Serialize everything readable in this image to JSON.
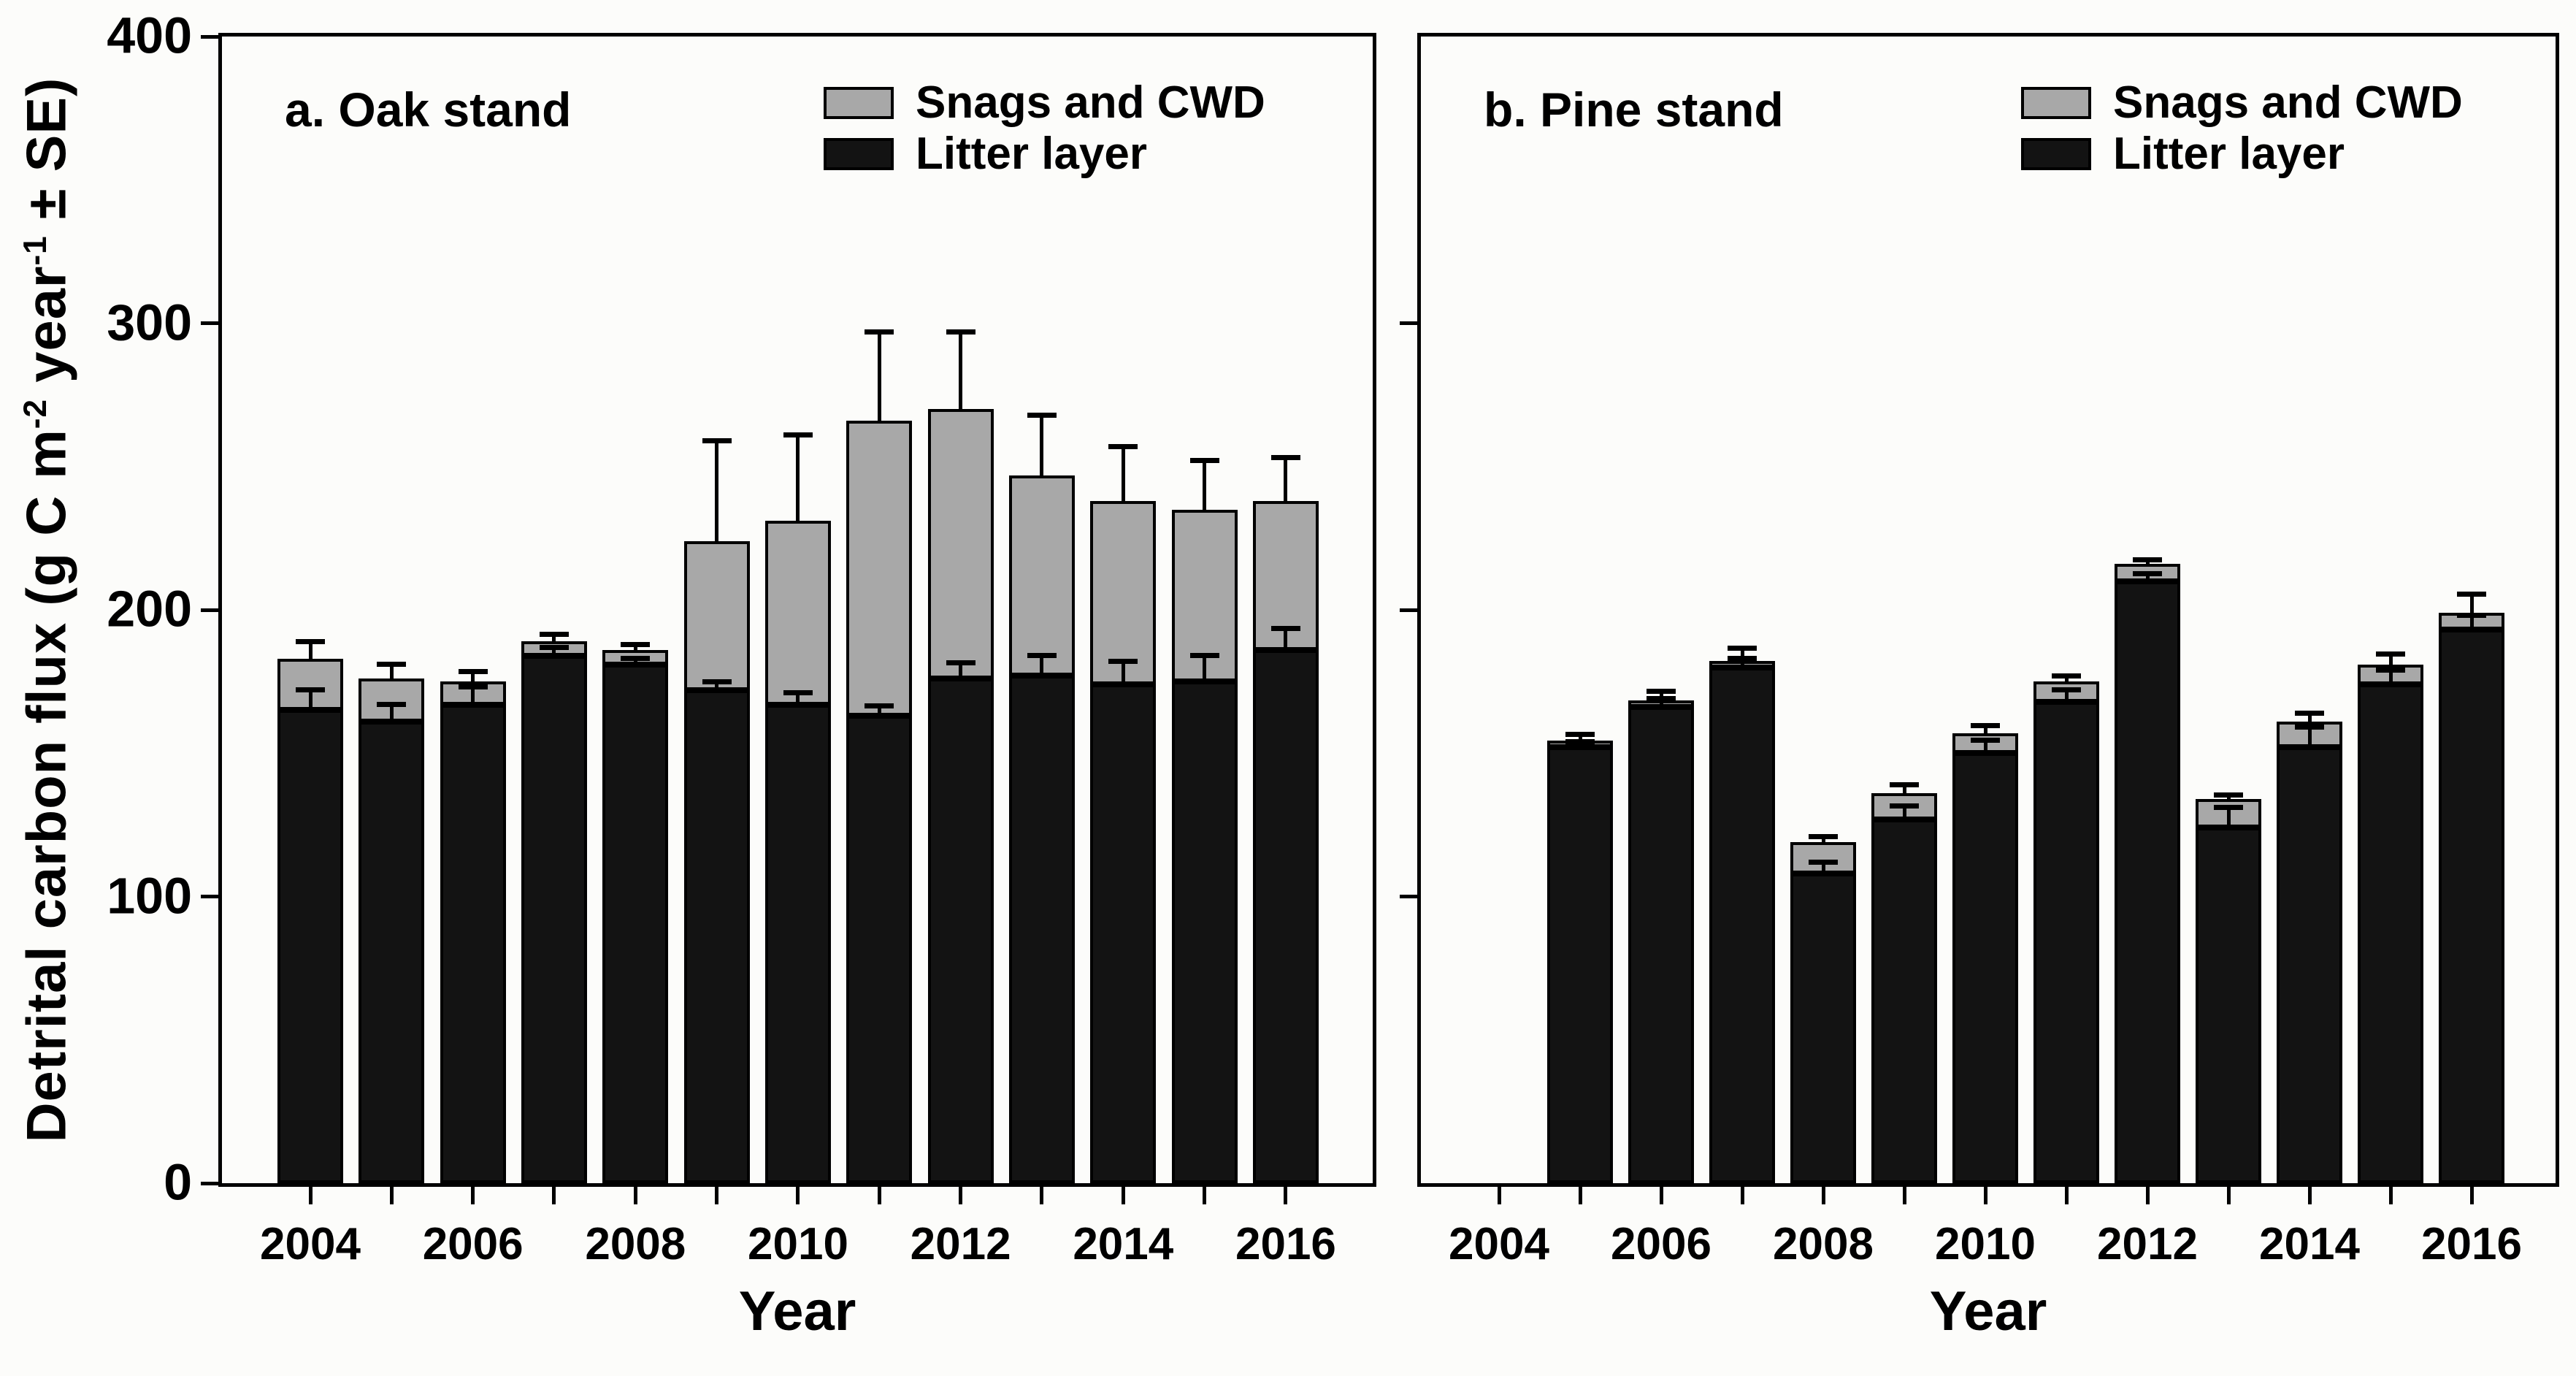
{
  "figure": {
    "background": "#fcfcfa",
    "frame_color": "#000000",
    "bar_black": "#131313",
    "bar_gray": "#a8a8a8",
    "error_color": "#000000"
  },
  "ylabel": {
    "text_flat": "Detrital carbon flux (g C m-2 year-1 ± SE)",
    "p1": "Detrital carbon flux (g C m",
    "s1": "-2",
    "p2": " year",
    "s2": "-1",
    "p3": " ± SE)"
  },
  "chart_data": [
    {
      "type": "bar",
      "stacked": true,
      "panel_id": "a",
      "title": "a. Oak stand",
      "xlabel": "Year",
      "ylim": [
        0,
        400
      ],
      "yticks": [
        0,
        100,
        200,
        300,
        400
      ],
      "grid": false,
      "legend_position": "top-right-inside",
      "categories": [
        2004,
        2005,
        2006,
        2007,
        2008,
        2009,
        2010,
        2011,
        2012,
        2013,
        2014,
        2015,
        2016
      ],
      "series": [
        {
          "name": "Litter layer",
          "color": "#131313",
          "values": [
            165,
            161,
            167,
            184,
            181,
            172,
            167,
            163,
            176,
            177,
            174,
            175,
            186
          ]
        },
        {
          "name": "Snags and CWD",
          "color": "#a8a8a8",
          "values": [
            18,
            15,
            8,
            5,
            5,
            52,
            64,
            103,
            94,
            70,
            64,
            60,
            52
          ]
        }
      ],
      "totals": [
        183,
        176,
        175,
        189,
        186,
        224,
        231,
        266,
        270,
        247,
        238,
        235,
        238
      ],
      "se_total": [
        6,
        5,
        3.5,
        2.5,
        2,
        35,
        30,
        31,
        27,
        21,
        19,
        17,
        15
      ],
      "se_litter": [
        7,
        6,
        6,
        3,
        2,
        3,
        4,
        3.5,
        5.5,
        7,
        8,
        9,
        7.5
      ]
    },
    {
      "type": "bar",
      "stacked": true,
      "panel_id": "b",
      "title": "b. Pine stand",
      "xlabel": "Year",
      "ylim": [
        0,
        400
      ],
      "yticks": [
        0,
        100,
        200,
        300,
        400
      ],
      "grid": false,
      "legend_position": "top-right-inside",
      "categories": [
        2004,
        2005,
        2006,
        2007,
        2008,
        2009,
        2010,
        2011,
        2012,
        2013,
        2014,
        2015,
        2016
      ],
      "series": [
        {
          "name": "Litter layer",
          "color": "#131313",
          "values": [
            null,
            152,
            166,
            180,
            108,
            127,
            150,
            168,
            210,
            124,
            152,
            174,
            193
          ]
        },
        {
          "name": "Snags and CWD",
          "color": "#a8a8a8",
          "values": [
            null,
            2,
            2,
            2,
            11,
            9,
            7,
            7,
            6,
            10,
            9,
            7,
            6
          ]
        }
      ],
      "totals": [
        null,
        154,
        168,
        182,
        119,
        136,
        157,
        175,
        216,
        134,
        161,
        181,
        199
      ],
      "se_total": [
        null,
        2.5,
        3.5,
        4.5,
        2,
        3,
        2.5,
        2,
        1.5,
        1.5,
        3,
        3.5,
        6.5
      ],
      "se_litter": [
        null,
        2,
        3,
        3,
        4,
        4.5,
        4.5,
        4,
        2.5,
        7,
        7,
        5,
        5
      ]
    }
  ]
}
